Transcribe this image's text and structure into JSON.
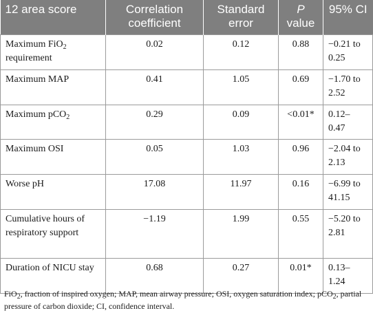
{
  "table": {
    "headers": {
      "area_score": "12 area score",
      "correlation": "Correlation coefficient",
      "std_error": "Standard error",
      "p_italic": "P",
      "p_rest": "value",
      "ci": "95% CI"
    },
    "rows": [
      {
        "label_main": "Maximum FiO",
        "label_sub": "2",
        "label_rest": " requirement",
        "coef": "0.02",
        "se": "0.12",
        "p": "0.88",
        "ci": "−0.21 to 0.25"
      },
      {
        "label_main": "Maximum MAP",
        "label_sub": "",
        "label_rest": "",
        "coef": "0.41",
        "se": "1.05",
        "p": "0.69",
        "ci": "−1.70 to 2.52"
      },
      {
        "label_main": "Maximum pCO",
        "label_sub": "2",
        "label_rest": "",
        "coef": "0.29",
        "se": "0.09",
        "p": "<0.01*",
        "ci": "0.12– 0.47"
      },
      {
        "label_main": "Maximum OSI",
        "label_sub": "",
        "label_rest": "",
        "coef": "0.05",
        "se": "1.03",
        "p": "0.96",
        "ci": "−2.04 to 2.13"
      },
      {
        "label_main": "Worse pH",
        "label_sub": "",
        "label_rest": "",
        "coef": "17.08",
        "se": "11.97",
        "p": "0.16",
        "ci": "−6.99 to 41.15"
      },
      {
        "label_main": "Cumulative hours of respiratory support",
        "label_sub": "",
        "label_rest": "",
        "coef": "−1.19",
        "se": "1.99",
        "p": "0.55",
        "ci": "−5.20 to 2.81"
      },
      {
        "label_main": "Duration of NICU stay",
        "label_sub": "",
        "label_rest": "",
        "coef": "0.68",
        "se": "0.27",
        "p": "0.01*",
        "ci": "0.13– 1.24"
      }
    ]
  },
  "footnote": {
    "fio2_main": "FiO",
    "fio2_sub": "2",
    "part1": ", fraction of inspired oxygen; MAP, mean airway pressure; OSI, oxygen saturation index;",
    "pco2_main": "pCO",
    "pco2_sub": "2",
    "part2": ", partial pressure of carbon dioxide; CI, confidence interval."
  },
  "colors": {
    "header_bg": "#7f7f7f",
    "header_text": "#ffffff",
    "border": "#9a9a9a"
  }
}
